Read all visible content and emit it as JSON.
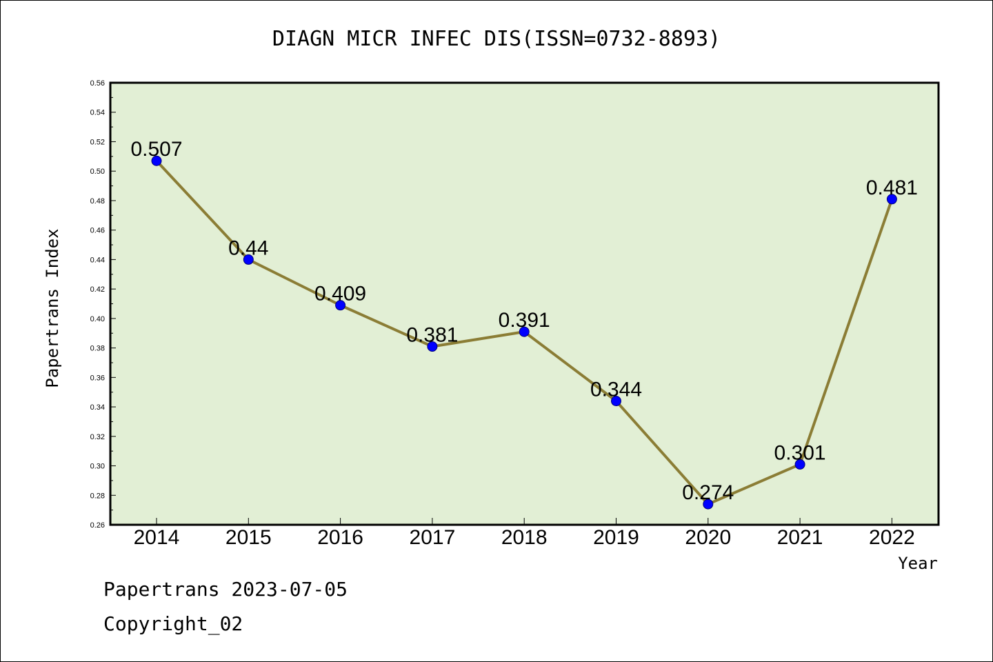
{
  "chart_data": {
    "type": "line",
    "title": "DIAGN MICR INFEC DIS(ISSN=0732-8893)",
    "xlabel": "Year",
    "ylabel": "Papertrans Index",
    "categories": [
      "2014",
      "2015",
      "2016",
      "2017",
      "2018",
      "2019",
      "2020",
      "2021",
      "2022"
    ],
    "values": [
      0.507,
      0.44,
      0.409,
      0.381,
      0.391,
      0.344,
      0.274,
      0.301,
      0.481
    ],
    "value_labels": [
      "0.507",
      "0.44",
      "0.409",
      "0.381",
      "0.391",
      "0.344",
      "0.274",
      "0.301",
      "0.481"
    ],
    "ylim": [
      0.26,
      0.56
    ],
    "yticks": [
      "0.26",
      "0.28",
      "0.30",
      "0.32",
      "0.34",
      "0.36",
      "0.38",
      "0.40",
      "0.42",
      "0.44",
      "0.46",
      "0.48",
      "0.50",
      "0.52",
      "0.54",
      "0.56"
    ],
    "grid": false,
    "colors": {
      "plot_background": "#e2efd5",
      "line": "#8b7d35",
      "marker": "#0000ff"
    }
  },
  "footer": {
    "line1": "Papertrans 2023-07-05",
    "line2": "Copyright_02"
  }
}
